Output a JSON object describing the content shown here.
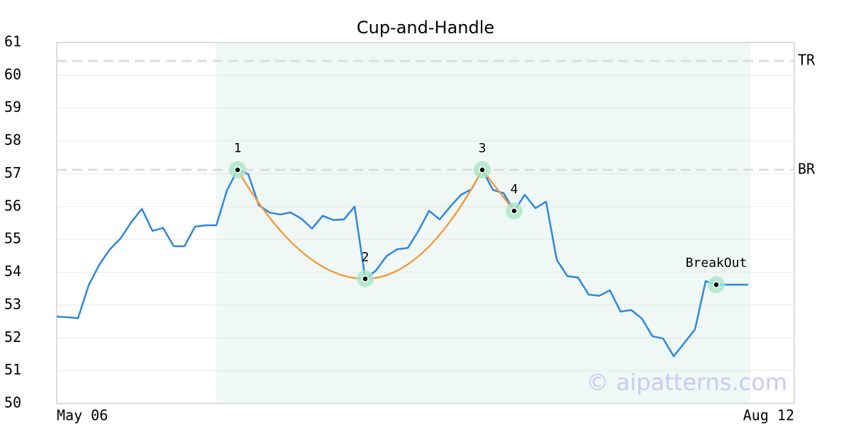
{
  "chart_data": {
    "type": "line",
    "title": "Cup-and-Handle",
    "xlim": [
      0,
      69.33
    ],
    "xticks": [
      {
        "value": 0,
        "label": "May 06"
      },
      {
        "value": 69.33,
        "label": "Aug 12"
      }
    ],
    "ylim": [
      50,
      61
    ],
    "yticks": [
      50,
      51,
      52,
      53,
      54,
      55,
      56,
      57,
      58,
      59,
      60,
      61
    ],
    "grid": true,
    "series": [
      {
        "color": "#2e86de",
        "x": [
          0,
          1,
          2,
          3,
          4,
          5,
          6,
          7,
          8,
          9,
          10,
          11,
          12,
          13,
          14,
          15,
          16,
          17,
          18,
          19,
          20,
          21,
          22,
          23,
          24,
          25,
          26,
          27,
          28,
          29,
          30,
          31,
          32,
          33,
          34,
          35,
          36,
          37,
          38,
          39,
          40,
          41,
          42,
          43,
          44,
          45,
          46,
          47,
          48,
          49,
          50,
          51,
          52,
          53,
          54,
          55,
          56,
          57,
          58,
          59,
          60,
          61,
          62,
          63,
          64,
          65
        ],
        "values": [
          52.65,
          52.63,
          52.6,
          53.6,
          54.23,
          54.7,
          55.03,
          55.52,
          55.93,
          55.26,
          55.35,
          54.79,
          54.79,
          55.39,
          55.43,
          55.43,
          56.49,
          57.12,
          56.99,
          56.04,
          55.82,
          55.76,
          55.82,
          55.63,
          55.33,
          55.72,
          55.59,
          55.61,
          56.0,
          53.8,
          54.05,
          54.49,
          54.7,
          54.74,
          55.26,
          55.87,
          55.61,
          56.0,
          56.36,
          56.53,
          57.12,
          56.51,
          56.41,
          55.87,
          56.36,
          55.95,
          56.15,
          54.38,
          53.88,
          53.84,
          53.32,
          53.28,
          53.45,
          52.8,
          52.85,
          52.59,
          52.05,
          51.98,
          51.44,
          51.85,
          52.26,
          53.73,
          53.62,
          53.62,
          53.62,
          53.62
        ]
      }
    ],
    "pattern_color": "#f39c42",
    "points": {
      "x": [
        17,
        29,
        40,
        43,
        62
      ],
      "values": [
        57.12,
        53.8,
        57.12,
        55.87,
        53.62
      ],
      "labels": [
        "1",
        "2",
        "3",
        "4",
        "BreakOut"
      ]
    },
    "reference_lines": [
      {
        "label": "TR",
        "value": 60.44
      },
      {
        "label": "BR",
        "value": 57.12
      }
    ],
    "shaded_x": [
      15,
      65.2
    ],
    "watermark": "© aipatterns.com"
  }
}
